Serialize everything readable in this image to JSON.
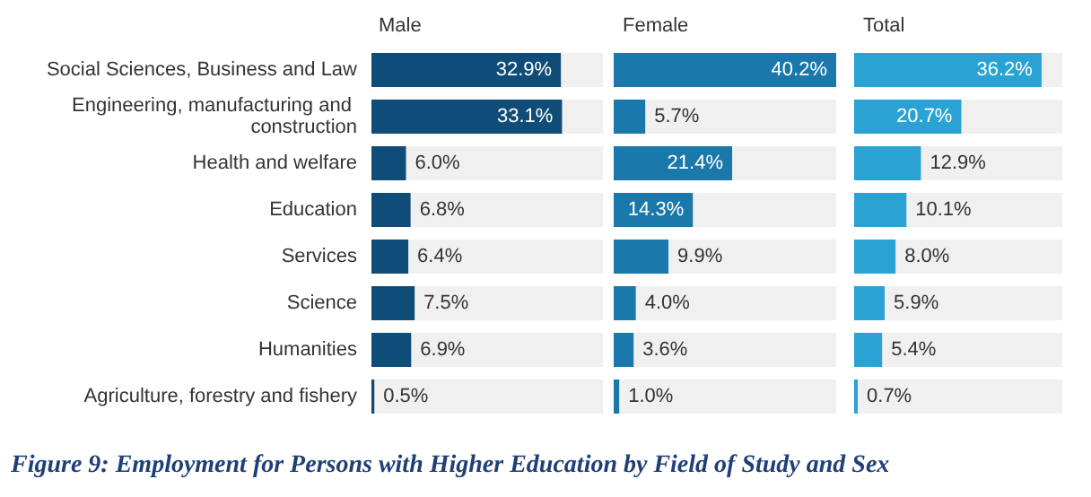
{
  "chart_data": [
    {
      "type": "bar",
      "orientation": "horizontal",
      "title": "Male",
      "tick_labels": "y",
      "color": "#0f4d78",
      "categories": [
        "Social Sciences, Business and Law",
        "Engineering, manufacturing and construction",
        "Health and welfare",
        "Education",
        "Services",
        "Science",
        "Humanities",
        "Agriculture, forestry and fishery"
      ],
      "values": [
        32.9,
        33.1,
        6.0,
        6.8,
        6.4,
        7.5,
        6.9,
        0.5
      ],
      "value_labels": [
        "32.9%",
        "33.1%",
        "6.0%",
        "6.8%",
        "6.4%",
        "7.5%",
        "6.9%",
        "0.5%"
      ],
      "annotations": [
        "Figure 9: Employment for Persons with Higher Education by Field of Study and Sex"
      ]
    },
    {
      "type": "bar",
      "orientation": "horizontal",
      "title": "Female",
      "color": "#1a78aa",
      "values": [
        40.2,
        5.7,
        21.4,
        14.3,
        9.9,
        4.0,
        3.6,
        1.0
      ],
      "value_labels": [
        "40.2%",
        "5.7%",
        "21.4%",
        "14.3%",
        "9.9%",
        "4.0%",
        "3.6%",
        "1.0%"
      ]
    },
    {
      "type": "bar",
      "orientation": "horizontal",
      "title": "Total",
      "color": "#2aa3d4",
      "values": [
        36.2,
        20.7,
        12.9,
        10.1,
        8.0,
        5.9,
        5.4,
        0.7
      ],
      "value_labels": [
        "36.2%",
        "20.7%",
        "12.9%",
        "10.1%",
        "8.0%",
        "5.9%",
        "5.4%",
        "0.7%"
      ]
    }
  ]
}
